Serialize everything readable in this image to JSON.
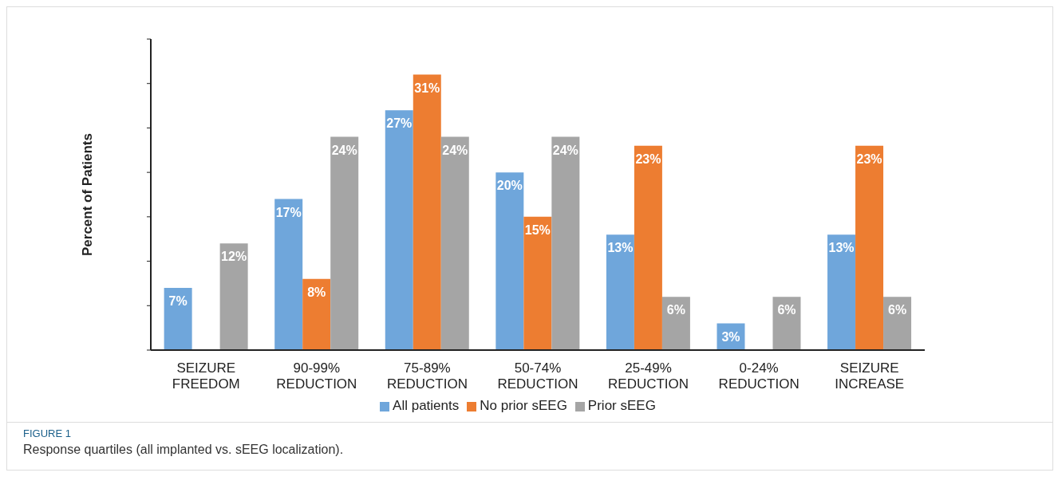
{
  "chart_data": {
    "type": "bar",
    "title": "FIGURE 1",
    "subtitle": "Response quartiles (all implanted vs. sEEG localization).",
    "ylabel": "Percent of Patients",
    "categories": [
      "SEIZURE FREEDOM",
      "90-99% REDUCTION",
      "75-89% REDUCTION",
      "50-74% REDUCTION",
      "25-49% REDUCTION",
      "0-24% REDUCTION",
      "SEIZURE INCREASE"
    ],
    "series": [
      {
        "name": "All patients",
        "color": "#6fa6db",
        "values": [
          7,
          17,
          27,
          20,
          13,
          3,
          13
        ],
        "value_labels": [
          "7%",
          "17%",
          "27%",
          "20%",
          "13%",
          "3%",
          "13%"
        ]
      },
      {
        "name": "No prior sEEG",
        "color": "#ed7d31",
        "values": [
          0,
          8,
          31,
          15,
          23,
          0,
          23
        ],
        "value_labels": [
          null,
          "8%",
          "31%",
          "15%",
          "23%",
          null,
          "23%"
        ]
      },
      {
        "name": "Prior sEEG",
        "color": "#a5a5a5",
        "values": [
          12,
          24,
          24,
          24,
          6,
          6,
          6
        ],
        "value_labels": [
          "12%",
          "24%",
          "24%",
          "24%",
          "6%",
          "6%",
          "6%"
        ]
      }
    ],
    "ylim": [
      0,
      35
    ],
    "yticks": [
      {
        "value": 0,
        "label": null
      },
      {
        "value": 5,
        "label": null
      },
      {
        "value": 10,
        "label": null
      },
      {
        "value": 15,
        "label": null
      },
      {
        "value": 20,
        "label": null
      },
      {
        "value": 25,
        "label": null
      },
      {
        "value": 30,
        "label": null
      },
      {
        "value": 35,
        "label": null
      }
    ],
    "tick_labels": "x",
    "grid": false,
    "legend": "bottom"
  }
}
